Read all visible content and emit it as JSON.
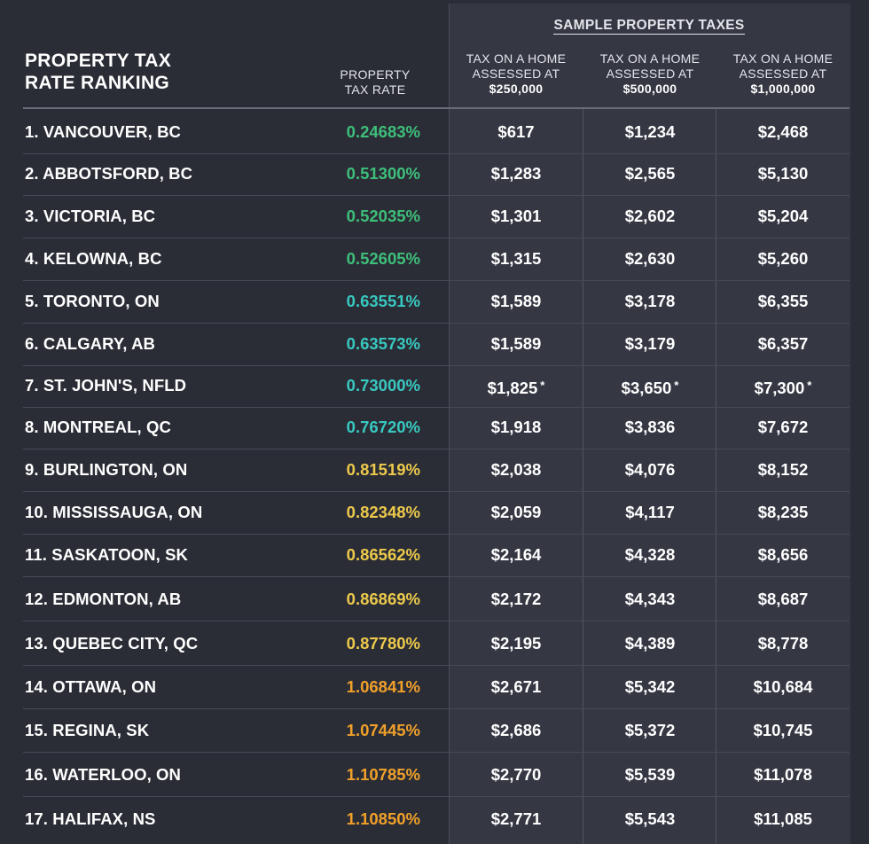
{
  "header": {
    "ranking_title_line1": "PROPERTY TAX",
    "ranking_title_line2": "RATE RANKING",
    "rate_head_line1": "PROPERTY",
    "rate_head_line2": "TAX RATE",
    "sample_title": "SAMPLE PROPERTY TAXES",
    "tax_head_prefix_line1": "TAX ON A HOME",
    "tax_head_prefix_line2": "ASSESSED AT",
    "tax_250_amount": "$250,000",
    "tax_500_amount": "$500,000",
    "tax_1m_amount": "$1,000,000"
  },
  "colors": {
    "green": "#3dbf7a",
    "teal": "#38c8c0",
    "yellow": "#ecc94b",
    "orange": "#f0a02a"
  },
  "rows": [
    {
      "city": "1. VANCOUVER, BC",
      "rate": "0.24683%",
      "tier": "green",
      "t250": "$617",
      "t500": "$1,234",
      "t1m": "$2,468"
    },
    {
      "city": "2. ABBOTSFORD, BC",
      "rate": "0.51300%",
      "tier": "green",
      "t250": "$1,283",
      "t500": "$2,565",
      "t1m": "$5,130"
    },
    {
      "city": "3. VICTORIA, BC",
      "rate": "0.52035%",
      "tier": "green",
      "t250": "$1,301",
      "t500": "$2,602",
      "t1m": "$5,204"
    },
    {
      "city": "4. KELOWNA, BC",
      "rate": "0.52605%",
      "tier": "green",
      "t250": "$1,315",
      "t500": "$2,630",
      "t1m": "$5,260"
    },
    {
      "city": "5. TORONTO, ON",
      "rate": "0.63551%",
      "tier": "teal",
      "t250": "$1,589",
      "t500": "$3,178",
      "t1m": "$6,355"
    },
    {
      "city": "6. CALGARY, AB",
      "rate": "0.63573%",
      "tier": "teal",
      "t250": "$1,589",
      "t500": "$3,179",
      "t1m": "$6,357"
    },
    {
      "city": "7. ST. JOHN'S, NFLD",
      "rate": "0.73000%",
      "tier": "teal",
      "t250": "$1,825",
      "t500": "$3,650",
      "t1m": "$7,300",
      "note": "*"
    },
    {
      "city": "8. MONTREAL, QC",
      "rate": "0.76720%",
      "tier": "teal",
      "t250": "$1,918",
      "t500": "$3,836",
      "t1m": "$7,672"
    },
    {
      "city": "9. BURLINGTON, ON",
      "rate": "0.81519%",
      "tier": "yellow",
      "t250": "$2,038",
      "t500": "$4,076",
      "t1m": "$8,152"
    },
    {
      "city": "10. MISSISSAUGA, ON",
      "rate": "0.82348%",
      "tier": "yellow",
      "t250": "$2,059",
      "t500": "$4,117",
      "t1m": "$8,235"
    },
    {
      "city": "11. SASKATOON, SK",
      "rate": "0.86562%",
      "tier": "yellow",
      "t250": "$2,164",
      "t500": "$4,328",
      "t1m": "$8,656"
    },
    {
      "city": "12. EDMONTON, AB",
      "rate": "0.86869%",
      "tier": "yellow",
      "t250": "$2,172",
      "t500": "$4,343",
      "t1m": "$8,687"
    },
    {
      "city": "13. QUEBEC CITY, QC",
      "rate": "0.87780%",
      "tier": "yellow",
      "t250": "$2,195",
      "t500": "$4,389",
      "t1m": "$8,778"
    },
    {
      "city": "14. OTTAWA, ON",
      "rate": "1.06841%",
      "tier": "orange",
      "t250": "$2,671",
      "t500": "$5,342",
      "t1m": "$10,684"
    },
    {
      "city": "15. REGINA, SK",
      "rate": "1.07445%",
      "tier": "orange",
      "t250": "$2,686",
      "t500": "$5,372",
      "t1m": "$10,745"
    },
    {
      "city": "16. WATERLOO, ON",
      "rate": "1.10785%",
      "tier": "orange",
      "t250": "$2,770",
      "t500": "$5,539",
      "t1m": "$11,078"
    },
    {
      "city": "17. HALIFAX, NS",
      "rate": "1.10850%",
      "tier": "orange",
      "t250": "$2,771",
      "t500": "$5,543",
      "t1m": "$11,085"
    }
  ]
}
